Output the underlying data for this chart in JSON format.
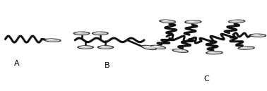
{
  "background_color": "#ffffff",
  "line_color": "#111111",
  "line_width": 2.2,
  "ellipse_face_outer": "#aaaaaa",
  "ellipse_face_inner": "#e8e8e8",
  "ellipse_edge": "#444444",
  "label_A": "A",
  "label_B": "B",
  "label_C": "C",
  "label_fontsize": 8,
  "figsize": [
    3.78,
    1.29
  ],
  "dpi": 100
}
